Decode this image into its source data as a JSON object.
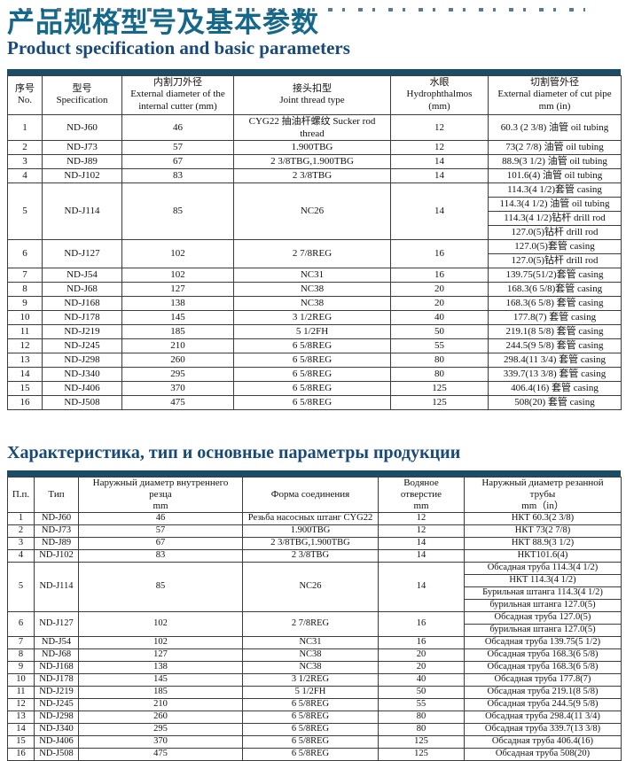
{
  "section_cn_en": {
    "title_zh": "产品规格型号及基本参数",
    "title_en": "Product specification and basic parameters",
    "table": {
      "headers": [
        [
          "序号",
          "No."
        ],
        [
          "型号",
          "Specification"
        ],
        [
          "内割刀外径",
          "External diameter of the",
          "internal cutter (mm)"
        ],
        [
          "接头扣型",
          "Joint thread type"
        ],
        [
          "水眼",
          "Hydrophthalmos",
          "(mm)"
        ],
        [
          "切割管外径",
          "External diameter of cut pipe",
          "mm (in)"
        ]
      ],
      "rows": [
        {
          "no": "1",
          "model": "ND-J60",
          "cutter": "46",
          "thread": "CYG22 抽油杆螺纹 Sucker rod thread",
          "eye": "12",
          "pipes": [
            "60.3 (2 3/8)  油管 oil tubing"
          ]
        },
        {
          "no": "2",
          "model": "ND-J73",
          "cutter": "57",
          "thread": "1.900TBG",
          "eye": "12",
          "pipes": [
            "73(2 7/8)  油管  oil tubing"
          ]
        },
        {
          "no": "3",
          "model": "ND-J89",
          "cutter": "67",
          "thread": "2 3/8TBG,1.900TBG",
          "eye": "14",
          "pipes": [
            "88.9(3 1/2)  油管  oil tubing"
          ]
        },
        {
          "no": "4",
          "model": "ND-J102",
          "cutter": "83",
          "thread": "2 3/8TBG",
          "eye": "14",
          "pipes": [
            "101.6(4)  油管  oil tubing"
          ]
        },
        {
          "no": "5",
          "model": "ND-J114",
          "cutter": "85",
          "thread": "NC26",
          "eye": "14",
          "pipes": [
            "114.3(4 1/2)套管 casing",
            "114.3(4 1/2) 油管 oil tubing",
            "114.3(4 1/2)钻杆 drill rod",
            "127.0(5)钻杆  drill rod"
          ]
        },
        {
          "no": "6",
          "model": "ND-J127",
          "cutter": "102",
          "thread": "2 7/8REG",
          "eye": "16",
          "pipes": [
            "127.0(5)套管  casing",
            "127.0(5)钻杆 drill rod"
          ]
        },
        {
          "no": "7",
          "model": "ND-J54",
          "cutter": "102",
          "thread": "NC31",
          "eye": "16",
          "pipes": [
            "139.75(51/2)套管  casing"
          ]
        },
        {
          "no": "8",
          "model": "ND-J68",
          "cutter": "127",
          "thread": "NC38",
          "eye": "20",
          "pipes": [
            "168.3(6 5/8)套管  casing"
          ]
        },
        {
          "no": "9",
          "model": "ND-J168",
          "cutter": "138",
          "thread": "NC38",
          "eye": "20",
          "pipes": [
            "168.3(6 5/8)  套管  casing"
          ]
        },
        {
          "no": "10",
          "model": "ND-J178",
          "cutter": "145",
          "thread": "3 1/2REG",
          "eye": "40",
          "pipes": [
            "177.8(7)  套管 casing"
          ]
        },
        {
          "no": "11",
          "model": "ND-J219",
          "cutter": "185",
          "thread": "5 1/2FH",
          "eye": "50",
          "pipes": [
            "219.1(8 5/8)  套管 casing"
          ]
        },
        {
          "no": "12",
          "model": "ND-J245",
          "cutter": "210",
          "thread": "6 5/8REG",
          "eye": "55",
          "pipes": [
            "244.5(9 5/8)  套管 casing"
          ]
        },
        {
          "no": "13",
          "model": "ND-J298",
          "cutter": "260",
          "thread": "6 5/8REG",
          "eye": "80",
          "pipes": [
            "298.4(11 3/4)  套管 casing"
          ]
        },
        {
          "no": "14",
          "model": "ND-J340",
          "cutter": "295",
          "thread": "6 5/8REG",
          "eye": "80",
          "pipes": [
            "339.7(13 3/8)  套管 casing"
          ]
        },
        {
          "no": "15",
          "model": "ND-J406",
          "cutter": "370",
          "thread": "6 5/8REG",
          "eye": "125",
          "pipes": [
            "406.4(16)  套管 casing"
          ]
        },
        {
          "no": "16",
          "model": "ND-J508",
          "cutter": "475",
          "thread": "6 5/8REG",
          "eye": "125",
          "pipes": [
            "508(20)  套管 casing"
          ]
        }
      ]
    }
  },
  "section_ru": {
    "title_ru": "Характеристика, тип и основные параметры продукции",
    "table": {
      "headers": [
        [
          "П.п."
        ],
        [
          "Тип"
        ],
        [
          "Наружный диаметр внутреннего",
          "резца",
          "mm"
        ],
        [
          "Форма соединения"
        ],
        [
          "Водяное",
          "отверстие",
          "mm"
        ],
        [
          "Наружный диаметр резанной",
          "трубы",
          "mm（in）"
        ]
      ],
      "rows": [
        {
          "no": "1",
          "model": "ND-J60",
          "cutter": "46",
          "thread": "Резьба насосных штанг CYG22",
          "eye": "12",
          "pipes": [
            "НКТ 60.3(2 3/8)"
          ]
        },
        {
          "no": "2",
          "model": "ND-J73",
          "cutter": "57",
          "thread": "1.900TBG",
          "eye": "12",
          "pipes": [
            "НКТ 73(2 7/8)"
          ]
        },
        {
          "no": "3",
          "model": "ND-J89",
          "cutter": "67",
          "thread": "2 3/8TBG,1.900TBG",
          "eye": "14",
          "pipes": [
            "НКТ 88.9(3 1/2)"
          ]
        },
        {
          "no": "4",
          "model": "ND-J102",
          "cutter": "83",
          "thread": "2 3/8TBG",
          "eye": "14",
          "pipes": [
            "НКТ101.6(4)"
          ]
        },
        {
          "no": "5",
          "model": "ND-J114",
          "cutter": "85",
          "thread": "NC26",
          "eye": "14",
          "pipes": [
            "Обсадная труба 114.3(4 1/2)",
            "НКТ 114.3(4 1/2)",
            "Бурильная штанга 114.3(4 1/2)",
            "бурильная штанга 127.0(5)"
          ]
        },
        {
          "no": "6",
          "model": "ND-J127",
          "cutter": "102",
          "thread": "2 7/8REG",
          "eye": "16",
          "pipes": [
            "Обсадная труба 127.0(5)",
            "бурильная штанга 127.0(5)"
          ]
        },
        {
          "no": "7",
          "model": "ND-J54",
          "cutter": "102",
          "thread": "NC31",
          "eye": "16",
          "pipes": [
            "Обсадная труба 139.75(5 1/2)"
          ]
        },
        {
          "no": "8",
          "model": "ND-J68",
          "cutter": "127",
          "thread": "NC38",
          "eye": "20",
          "pipes": [
            "Обсадная труба 168.3(6 5/8)"
          ]
        },
        {
          "no": "9",
          "model": "ND-J168",
          "cutter": "138",
          "thread": "NC38",
          "eye": "20",
          "pipes": [
            "Обсадная труба 168.3(6 5/8)"
          ]
        },
        {
          "no": "10",
          "model": "ND-J178",
          "cutter": "145",
          "thread": "3 1/2REG",
          "eye": "40",
          "pipes": [
            "Обсадная труба 177.8(7)"
          ]
        },
        {
          "no": "11",
          "model": "ND-J219",
          "cutter": "185",
          "thread": "5 1/2FH",
          "eye": "50",
          "pipes": [
            "Обсадная труба 219.1(8 5/8)"
          ]
        },
        {
          "no": "12",
          "model": "ND-J245",
          "cutter": "210",
          "thread": "6 5/8REG",
          "eye": "55",
          "pipes": [
            "Обсадная труба 244.5(9 5/8)"
          ]
        },
        {
          "no": "13",
          "model": "ND-J298",
          "cutter": "260",
          "thread": "6 5/8REG",
          "eye": "80",
          "pipes": [
            "Обсадная труба 298.4(11 3/4)"
          ]
        },
        {
          "no": "14",
          "model": "ND-J340",
          "cutter": "295",
          "thread": "6 5/8REG",
          "eye": "80",
          "pipes": [
            "Обсадная труба 339.7(13 3/8)"
          ]
        },
        {
          "no": "15",
          "model": "ND-J406",
          "cutter": "370",
          "thread": "6 5/8REG",
          "eye": "125",
          "pipes": [
            "Обсадная труба 406.4(16)"
          ]
        },
        {
          "no": "16",
          "model": "ND-J508",
          "cutter": "475",
          "thread": "6 5/8REG",
          "eye": "125",
          "pipes": [
            "Обсадная труба 508(20)"
          ]
        }
      ]
    }
  },
  "colors": {
    "title_zh": "#15688a",
    "title_latin_ru": "#17497a",
    "table_bar": "#1b4d66"
  }
}
